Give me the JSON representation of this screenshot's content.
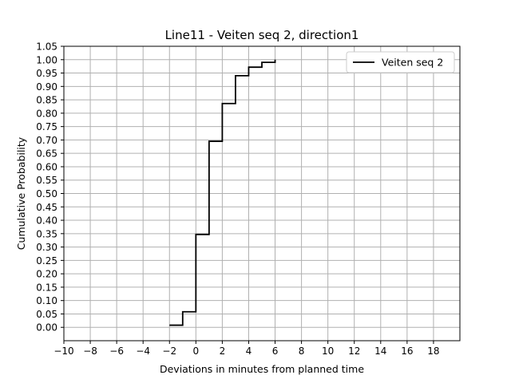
{
  "chart_data": {
    "type": "line",
    "step": "post",
    "title": "Line11 - Veiten seq 2, direction1",
    "xlabel": "Deviations in minutes from planned time",
    "ylabel": "Cumulative Probability",
    "xlim": [
      -10,
      20
    ],
    "ylim": [
      -0.05,
      1.05
    ],
    "xticks": [
      -10,
      -8,
      -6,
      -4,
      -2,
      0,
      2,
      4,
      6,
      8,
      10,
      12,
      14,
      16,
      18
    ],
    "yticks": [
      0.0,
      0.05,
      0.1,
      0.15,
      0.2,
      0.25,
      0.3,
      0.35,
      0.4,
      0.45,
      0.5,
      0.55,
      0.6,
      0.65,
      0.7,
      0.75,
      0.8,
      0.85,
      0.9,
      0.95,
      1.0,
      1.05
    ],
    "grid": true,
    "legend_position": "top-right",
    "series": [
      {
        "name": "Veiten seq 2",
        "color": "#000000",
        "x": [
          -2,
          -1,
          0,
          1,
          2,
          3,
          4,
          5,
          6
        ],
        "y": [
          0.008,
          0.058,
          0.347,
          0.695,
          0.836,
          0.94,
          0.972,
          0.99,
          1.0
        ]
      }
    ]
  }
}
